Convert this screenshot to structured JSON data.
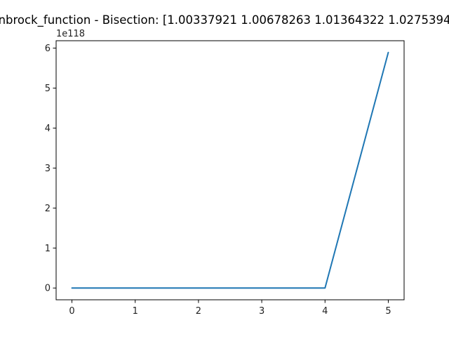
{
  "chart_data": {
    "type": "line",
    "title": "nbrock_function - Bisection: [1.00337921 1.00678263 1.01364322 1.0275394",
    "xlabel": "",
    "ylabel": "",
    "y_offset_label": "1e118",
    "x": [
      0,
      1,
      2,
      3,
      4,
      5
    ],
    "series": [
      {
        "values": [
          0,
          0,
          0,
          0,
          0,
          5.89e+118
        ],
        "color": "#1f77b4"
      }
    ],
    "xlim": [
      -0.25,
      5.25
    ],
    "ylim": [
      -2.945e+117,
      6.1845e+118
    ],
    "x_ticks": [
      0,
      1,
      2,
      3,
      4,
      5
    ],
    "x_tick_labels": [
      "0",
      "1",
      "2",
      "3",
      "4",
      "5"
    ],
    "y_ticks": [
      0,
      1e+118,
      2e+118,
      3e+118,
      4e+118,
      5e+118,
      6e+118
    ],
    "y_tick_labels": [
      "0",
      "1",
      "2",
      "3",
      "4",
      "5",
      "6"
    ],
    "grid": false,
    "legend": "none"
  }
}
